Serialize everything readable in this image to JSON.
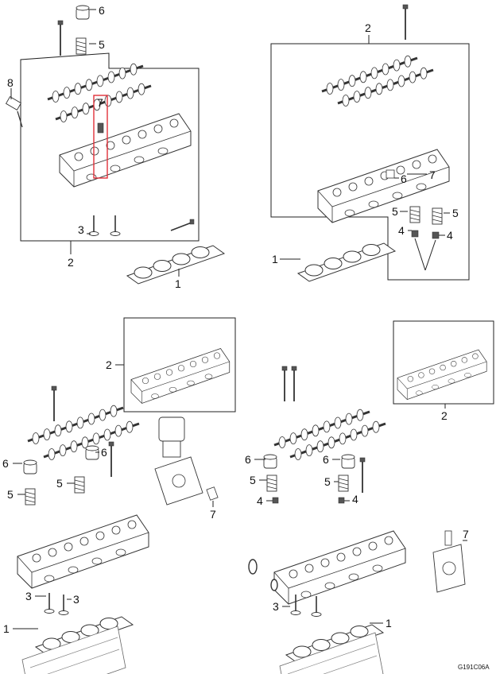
{
  "diagram_code": "G191C06A",
  "highlight_color": "#e0303a",
  "panels": {
    "top_left": {
      "labels": [
        "6",
        "5",
        "8",
        "7",
        "2",
        "3",
        "1"
      ]
    },
    "top_right": {
      "labels": [
        "2",
        "7",
        "6",
        "5",
        "5",
        "4",
        "4",
        "1"
      ]
    },
    "bottom_left": {
      "labels": [
        "2",
        "6",
        "6",
        "5",
        "5",
        "7",
        "3",
        "3",
        "1"
      ]
    },
    "bottom_right": {
      "labels": [
        "2",
        "6",
        "6",
        "5",
        "5",
        "4",
        "4",
        "7",
        "3",
        "1"
      ]
    }
  }
}
